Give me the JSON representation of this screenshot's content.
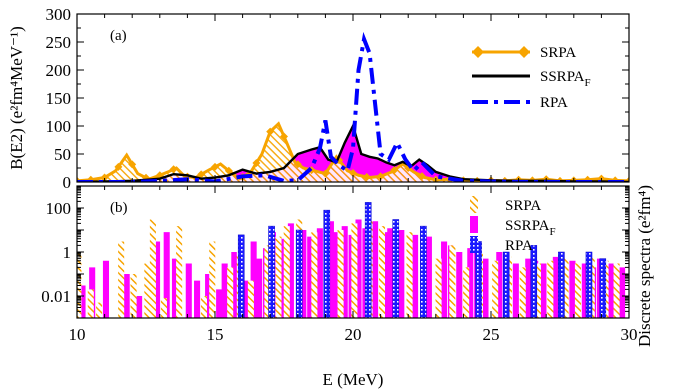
{
  "chart_data": [
    {
      "type": "line",
      "panel": "(a)",
      "xlabel": "",
      "ylabel": "B(E2) (e²fm⁴MeV⁻¹)",
      "xlim": [
        10,
        30
      ],
      "ylim": [
        0,
        300
      ],
      "yticks": [
        "0",
        "50",
        "100",
        "150",
        "200",
        "250",
        "300"
      ],
      "xticks": [
        "10",
        "15",
        "20",
        "25",
        "30"
      ],
      "legend_position": "top-right",
      "series": [
        {
          "name": "SRPA",
          "label_main": "SRPA",
          "label_sub": "",
          "color": "#f7a400",
          "style": "solid-diamond-markers",
          "x": [
            10,
            10.5,
            11,
            11.4,
            11.8,
            12.2,
            12.6,
            13,
            13.3,
            13.6,
            13.9,
            14.3,
            14.8,
            15.2,
            15.5,
            15.9,
            16.3,
            16.7,
            17.0,
            17.3,
            17.6,
            17.9,
            18.2,
            18.6,
            19,
            19.4,
            19.8,
            20.2,
            20.6,
            21,
            21.4,
            21.8,
            22.2,
            22.6,
            23,
            23.5,
            24,
            24.5,
            25,
            25.5,
            26,
            26.5,
            27,
            27.5,
            28,
            28.5,
            29,
            29.5,
            30
          ],
          "y": [
            2,
            4,
            8,
            20,
            48,
            15,
            5,
            12,
            18,
            25,
            10,
            8,
            22,
            32,
            20,
            6,
            18,
            50,
            90,
            104,
            70,
            35,
            25,
            20,
            15,
            45,
            20,
            12,
            8,
            10,
            18,
            32,
            18,
            8,
            4,
            5,
            3,
            2,
            3,
            2,
            4,
            3,
            5,
            2,
            3,
            4,
            6,
            3,
            2
          ]
        },
        {
          "name": "SSRPA_F",
          "label_main": "SSRPA",
          "label_sub": "F",
          "color": "#000000",
          "fill": "#ff00ff",
          "style": "solid",
          "x": [
            10,
            11,
            12,
            12.5,
            13,
            13.5,
            14,
            14.5,
            15,
            15.5,
            16,
            16.5,
            17,
            17.5,
            18,
            18.5,
            18.8,
            19.1,
            19.4,
            19.7,
            20.0,
            20.3,
            20.6,
            20.9,
            21.2,
            21.5,
            21.8,
            22.1,
            22.4,
            22.7,
            23,
            23.5,
            24,
            25,
            26,
            27,
            28,
            29,
            30
          ],
          "y": [
            0,
            1,
            2,
            4,
            6,
            14,
            12,
            6,
            8,
            12,
            22,
            15,
            18,
            25,
            50,
            58,
            62,
            40,
            35,
            70,
            100,
            50,
            45,
            42,
            35,
            30,
            36,
            28,
            40,
            30,
            18,
            10,
            5,
            3,
            2,
            2,
            1,
            1,
            0
          ]
        },
        {
          "name": "RPA",
          "label_main": "RPA",
          "label_sub": "",
          "color": "#0000ff",
          "style": "dash-dot",
          "x": [
            10,
            11,
            12,
            13,
            14,
            15,
            16,
            16.8,
            17.5,
            18.0,
            18.5,
            18.8,
            19.0,
            19.2,
            19.5,
            19.8,
            20.0,
            20.2,
            20.4,
            20.6,
            20.8,
            21.0,
            21.3,
            21.6,
            21.9,
            22.2,
            22.5,
            23,
            24,
            25,
            26,
            27,
            28,
            29,
            30
          ],
          "y": [
            0,
            0,
            0,
            2,
            5,
            1,
            10,
            12,
            2,
            3,
            25,
            60,
            110,
            45,
            30,
            20,
            60,
            200,
            255,
            230,
            140,
            50,
            40,
            70,
            40,
            20,
            35,
            10,
            2,
            1,
            0,
            0,
            0,
            0,
            0
          ]
        }
      ]
    },
    {
      "type": "bar",
      "panel": "(b)",
      "xlabel": "E (MeV)",
      "ylabel": "Discrete spectra (e²fm⁴)",
      "ylabel_side": "right",
      "yscale": "log",
      "xlim": [
        10,
        30
      ],
      "ylim": [
        0.001,
        1000
      ],
      "yticks": [
        "0.01",
        "1",
        "100"
      ],
      "xticks": [
        "10",
        "15",
        "20",
        "25",
        "30"
      ],
      "legend_position": "top-right",
      "series": [
        {
          "name": "SRPA",
          "label_main": "SRPA",
          "label_sub": "",
          "color": "#f7a400",
          "pattern": "orange-hatch",
          "x": [
            10.05,
            10.5,
            10.8,
            11.6,
            12.05,
            12.55,
            12.75,
            13.15,
            13.7,
            14.6,
            14.9,
            15.55,
            15.9,
            16.3,
            16.9,
            17.3,
            17.6,
            18.05,
            18.6,
            19.05,
            19.55,
            20.05,
            20.6,
            21.05,
            21.55,
            22.05,
            22.55,
            23.1,
            23.6,
            24.1,
            24.6,
            25.15,
            25.65,
            26.15,
            26.7,
            27.15,
            27.7,
            28.15,
            28.65,
            29.15,
            29.55
          ],
          "y": [
            1,
            0.02,
            0.005,
            3,
            0.1,
            0.3,
            30,
            0.008,
            15,
            0.01,
            3,
            0.2,
            1,
            0.05,
            2,
            5,
            15,
            30,
            8,
            40,
            10,
            20,
            30,
            15,
            5,
            8,
            3,
            0.5,
            2,
            0.2,
            1,
            0.4,
            0.6,
            0.2,
            0.3,
            0.4,
            0.5,
            0.3,
            0.6,
            0.4,
            0.3
          ]
        },
        {
          "name": "SSRPA_F",
          "label_main": "SSRPA",
          "label_sub": "F",
          "color": "#ff00ff",
          "pattern": "magenta-solid",
          "x": [
            10.2,
            10.55,
            11.05,
            11.8,
            12.25,
            12.9,
            13.25,
            13.55,
            14.05,
            14.35,
            14.75,
            15.15,
            15.35,
            15.7,
            16.15,
            16.4,
            16.6,
            16.85,
            17.1,
            17.45,
            17.75,
            18.2,
            18.45,
            18.8,
            19.2,
            19.4,
            19.7,
            19.95,
            20.2,
            20.45,
            20.8,
            21.15,
            21.35,
            21.75,
            22.25,
            22.75,
            23.3,
            23.55,
            23.85,
            24.25,
            24.5,
            24.8,
            25.3,
            25.55,
            25.9,
            26.35,
            26.6,
            26.9,
            27.35,
            27.7,
            27.95,
            28.4,
            28.7,
            28.95,
            29.35,
            29.75
          ],
          "y": [
            0.03,
            0.2,
            0.4,
            0.1,
            0.01,
            3,
            8,
            0.5,
            0.3,
            0.05,
            0.1,
            0.02,
            0.3,
            1,
            0.05,
            3,
            0.5,
            1.5,
            8,
            4,
            20,
            10,
            5,
            12,
            25,
            8,
            15,
            6,
            30,
            12,
            25,
            8,
            12,
            10,
            6,
            5,
            3,
            2,
            1,
            1.5,
            2,
            0.5,
            1,
            0.8,
            0.3,
            0.5,
            0.4,
            0.3,
            0.6,
            0.2,
            0.4,
            0.3,
            0.2,
            0.5,
            0.3,
            0.2
          ]
        },
        {
          "name": "RPA",
          "label_main": "RPA",
          "label_sub": "",
          "color": "#0000ff",
          "pattern": "blue-dotted",
          "x": [
            15.95,
            17.05,
            18.05,
            19.05,
            20.55,
            21.55,
            22.55,
            24.55,
            25.55,
            26.55,
            27.55,
            28.55,
            29.05
          ],
          "y": [
            6,
            15,
            10,
            80,
            180,
            30,
            15,
            3,
            1,
            2,
            1,
            1,
            0.5
          ]
        }
      ]
    }
  ]
}
